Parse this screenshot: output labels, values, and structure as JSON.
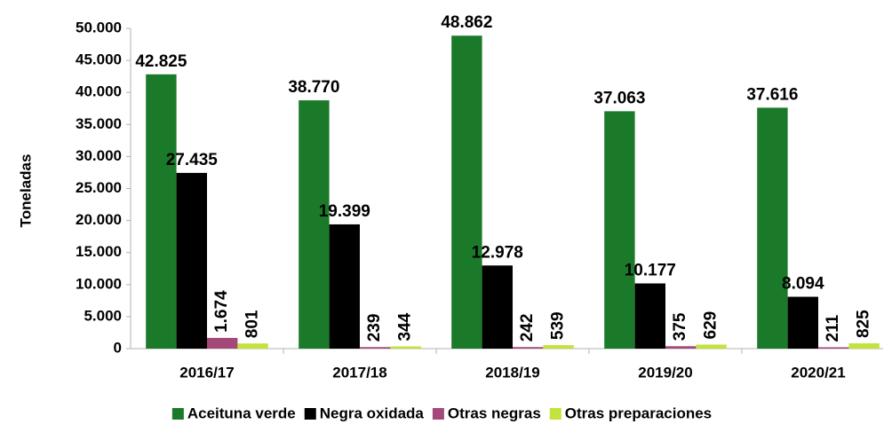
{
  "chart_data": {
    "type": "bar",
    "ylabel": "Toneladas",
    "categories": [
      "2016/17",
      "2017/18",
      "2018/19",
      "2019/20",
      "2020/21"
    ],
    "series": [
      {
        "name": "Aceituna verde",
        "color": "#1a7a2a",
        "values": [
          42825,
          38770,
          48862,
          37063,
          37616
        ],
        "value_labels": [
          "42.825",
          "38.770",
          "48.862",
          "37.063",
          "37.616"
        ]
      },
      {
        "name": "Negra oxidada",
        "color": "#000000",
        "values": [
          27435,
          19399,
          12978,
          10177,
          8094
        ],
        "value_labels": [
          "27.435",
          "19.399",
          "12.978",
          "10.177",
          "8.094"
        ]
      },
      {
        "name": "Otras negras",
        "color": "#a4487a",
        "values": [
          1674,
          239,
          242,
          375,
          211
        ],
        "value_labels": [
          "1.674",
          "239",
          "242",
          "375",
          "211"
        ]
      },
      {
        "name": "Otras preparaciones",
        "color": "#c2e23c",
        "values": [
          801,
          344,
          539,
          629,
          825
        ]
      }
    ],
    "ylim": [
      0,
      50000
    ],
    "yticks": [
      0,
      {
        "value": 5000,
        "label": "5.000"
      },
      {
        "value": 10000,
        "label": "10.000"
      },
      {
        "value": 15000,
        "label": "15.000"
      },
      {
        "value": 20000,
        "label": "20.000"
      },
      {
        "value": 25000,
        "label": "25.000"
      },
      {
        "value": 30000,
        "label": "30.000"
      },
      {
        "value": 35000,
        "label": "35.000"
      },
      {
        "value": 40000,
        "label": "40.000"
      },
      {
        "value": 45000,
        "label": "45.000"
      },
      {
        "value": 50000,
        "label": "50.000"
      }
    ],
    "legend": "bottom"
  }
}
